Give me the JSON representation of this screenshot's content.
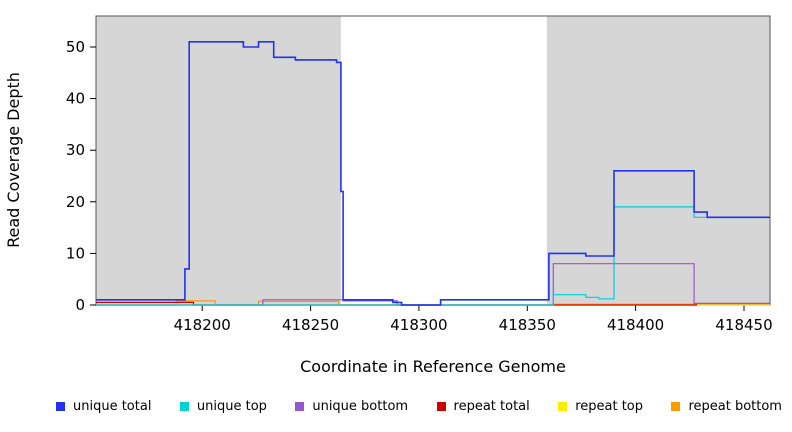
{
  "chart_data": {
    "type": "line",
    "subtype": "step-coverage-plot",
    "title": "",
    "xlabel": "Coordinate in Reference Genome",
    "ylabel": "Read Coverage Depth",
    "xlim": [
      418151,
      418462
    ],
    "ylim": [
      0,
      56
    ],
    "xticks": [
      418200,
      418250,
      418300,
      418350,
      418400,
      418450
    ],
    "yticks": [
      0,
      10,
      20,
      30,
      40,
      50
    ],
    "grid": false,
    "legend_position": "bottom",
    "plot_background": "#ffffff",
    "shaded_region_color": "#d6d6d6",
    "shaded_regions": [
      {
        "x0": 418151,
        "x1": 418264
      },
      {
        "x0": 418359,
        "x1": 418462
      }
    ],
    "series": [
      {
        "name": "unique total",
        "color": "#2233ee",
        "points": [
          [
            418151,
            1
          ],
          [
            418192,
            1
          ],
          [
            418192,
            7
          ],
          [
            418194,
            7
          ],
          [
            418194,
            51
          ],
          [
            418219,
            51
          ],
          [
            418219,
            50
          ],
          [
            418226,
            50
          ],
          [
            418226,
            51
          ],
          [
            418233,
            51
          ],
          [
            418233,
            48
          ],
          [
            418243,
            48
          ],
          [
            418243,
            47.5
          ],
          [
            418262,
            47.5
          ],
          [
            418262,
            47
          ],
          [
            418264,
            47
          ],
          [
            418264,
            22
          ],
          [
            418265,
            22
          ],
          [
            418265,
            1
          ],
          [
            418288,
            1
          ],
          [
            418288,
            0.5
          ],
          [
            418292,
            0.5
          ],
          [
            418292,
            0
          ],
          [
            418310,
            0
          ],
          [
            418310,
            1
          ],
          [
            418360,
            1
          ],
          [
            418360,
            10
          ],
          [
            418377,
            10
          ],
          [
            418377,
            9.5
          ],
          [
            418390,
            9.5
          ],
          [
            418390,
            26
          ],
          [
            418427,
            26
          ],
          [
            418427,
            18
          ],
          [
            418433,
            18
          ],
          [
            418433,
            17
          ],
          [
            418462,
            17
          ]
        ]
      },
      {
        "name": "unique top",
        "color": "#00d0d8",
        "points": [
          [
            418151,
            0
          ],
          [
            418362,
            0
          ],
          [
            418362,
            2
          ],
          [
            418377,
            2
          ],
          [
            418377,
            1.5
          ],
          [
            418383,
            1.5
          ],
          [
            418383,
            1.2
          ],
          [
            418390,
            1.2
          ],
          [
            418390,
            19
          ],
          [
            418427,
            19
          ],
          [
            418427,
            17
          ],
          [
            418462,
            17
          ]
        ]
      },
      {
        "name": "unique bottom",
        "color": "#9955cc",
        "points": [
          [
            418151,
            0
          ],
          [
            418228,
            0
          ],
          [
            418228,
            1
          ],
          [
            418265,
            1
          ],
          [
            418265,
            0.8
          ],
          [
            418290,
            0.8
          ],
          [
            418290,
            0
          ],
          [
            418362,
            0
          ],
          [
            418362,
            8
          ],
          [
            418427,
            8
          ],
          [
            418427,
            0.3
          ],
          [
            418462,
            0.3
          ]
        ]
      },
      {
        "name": "repeat total",
        "color": "#cc0000",
        "points": [
          [
            418151,
            0.5
          ],
          [
            418196,
            0.5
          ],
          [
            418196,
            0
          ],
          [
            418428,
            0
          ],
          [
            418428,
            0.3
          ],
          [
            418462,
            0.3
          ]
        ]
      },
      {
        "name": "repeat top",
        "color": "#ffee00",
        "points": [
          [
            418151,
            0
          ],
          [
            418462,
            0
          ]
        ]
      },
      {
        "name": "repeat bottom",
        "color": "#ff9900",
        "points": [
          [
            418151,
            0
          ],
          [
            418188,
            0
          ],
          [
            418188,
            0.8
          ],
          [
            418206,
            0.8
          ],
          [
            418206,
            0
          ],
          [
            418226,
            0
          ],
          [
            418226,
            0.7
          ],
          [
            418263,
            0.7
          ],
          [
            418263,
            0
          ],
          [
            418362,
            0
          ],
          [
            418362,
            0.15
          ],
          [
            418428,
            0.15
          ],
          [
            418428,
            0
          ],
          [
            418462,
            0
          ]
        ]
      }
    ]
  }
}
